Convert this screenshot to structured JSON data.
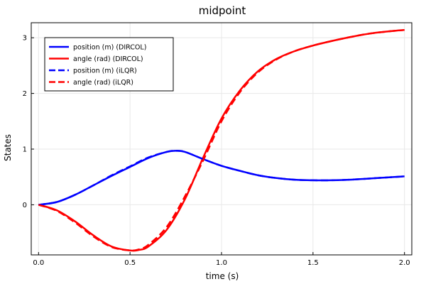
{
  "chart_data": {
    "type": "line",
    "title": "midpoint",
    "xlabel": "time (s)",
    "ylabel": "States",
    "xlim": [
      -0.04,
      2.04
    ],
    "ylim": [
      -0.9,
      3.27
    ],
    "xticks": [
      0.0,
      0.5,
      1.0,
      1.5,
      2.0
    ],
    "xtick_labels": [
      "0.0",
      "0.5",
      "1.0",
      "1.5",
      "2.0"
    ],
    "yticks": [
      0,
      1,
      2,
      3
    ],
    "ytick_labels": [
      "0",
      "1",
      "2",
      "3"
    ],
    "grid": true,
    "legend_position": "top-left",
    "series": [
      {
        "name": "position (m) (DIRCOL)",
        "color": "#0000ff",
        "dash": "solid",
        "x": [
          0,
          0.1,
          0.2,
          0.3,
          0.4,
          0.5,
          0.6,
          0.7,
          0.75,
          0.8,
          0.9,
          1.0,
          1.1,
          1.2,
          1.3,
          1.4,
          1.5,
          1.6,
          1.7,
          1.8,
          1.9,
          2.0
        ],
        "y": [
          0,
          0.05,
          0.18,
          0.35,
          0.52,
          0.68,
          0.84,
          0.95,
          0.97,
          0.95,
          0.82,
          0.7,
          0.61,
          0.53,
          0.48,
          0.45,
          0.44,
          0.44,
          0.45,
          0.47,
          0.49,
          0.51
        ]
      },
      {
        "name": "angle (rad) (DIRCOL)",
        "color": "#ff0000",
        "dash": "solid",
        "x": [
          0,
          0.1,
          0.2,
          0.3,
          0.4,
          0.5,
          0.55,
          0.6,
          0.7,
          0.8,
          0.9,
          1.0,
          1.1,
          1.2,
          1.3,
          1.4,
          1.5,
          1.6,
          1.7,
          1.8,
          1.9,
          2.0
        ],
        "y": [
          0,
          -0.1,
          -0.3,
          -0.55,
          -0.75,
          -0.82,
          -0.81,
          -0.75,
          -0.45,
          0.1,
          0.85,
          1.55,
          2.05,
          2.4,
          2.62,
          2.76,
          2.86,
          2.94,
          3.01,
          3.07,
          3.11,
          3.14
        ]
      },
      {
        "name": "position (m) (iLQR)",
        "color": "#0000ff",
        "dash": "dashed",
        "x": [
          0,
          0.1,
          0.2,
          0.3,
          0.4,
          0.5,
          0.6,
          0.7,
          0.75,
          0.8,
          0.9,
          1.0,
          1.1,
          1.2,
          1.3,
          1.4,
          1.5,
          1.6,
          1.7,
          1.8,
          1.9,
          2.0
        ],
        "y": [
          0,
          0.05,
          0.18,
          0.35,
          0.53,
          0.69,
          0.85,
          0.95,
          0.97,
          0.95,
          0.82,
          0.7,
          0.61,
          0.53,
          0.48,
          0.45,
          0.44,
          0.44,
          0.45,
          0.47,
          0.49,
          0.51
        ]
      },
      {
        "name": "angle (rad) (iLQR)",
        "color": "#ff0000",
        "dash": "dashed",
        "x": [
          0,
          0.1,
          0.2,
          0.3,
          0.4,
          0.5,
          0.55,
          0.6,
          0.7,
          0.8,
          0.9,
          1.0,
          1.1,
          1.2,
          1.3,
          1.4,
          1.5,
          1.6,
          1.7,
          1.8,
          1.9,
          2.0
        ],
        "y": [
          0,
          -0.11,
          -0.32,
          -0.57,
          -0.76,
          -0.82,
          -0.8,
          -0.72,
          -0.4,
          0.15,
          0.8,
          1.5,
          2.02,
          2.38,
          2.61,
          2.76,
          2.86,
          2.94,
          3.01,
          3.07,
          3.11,
          3.14
        ]
      }
    ]
  }
}
